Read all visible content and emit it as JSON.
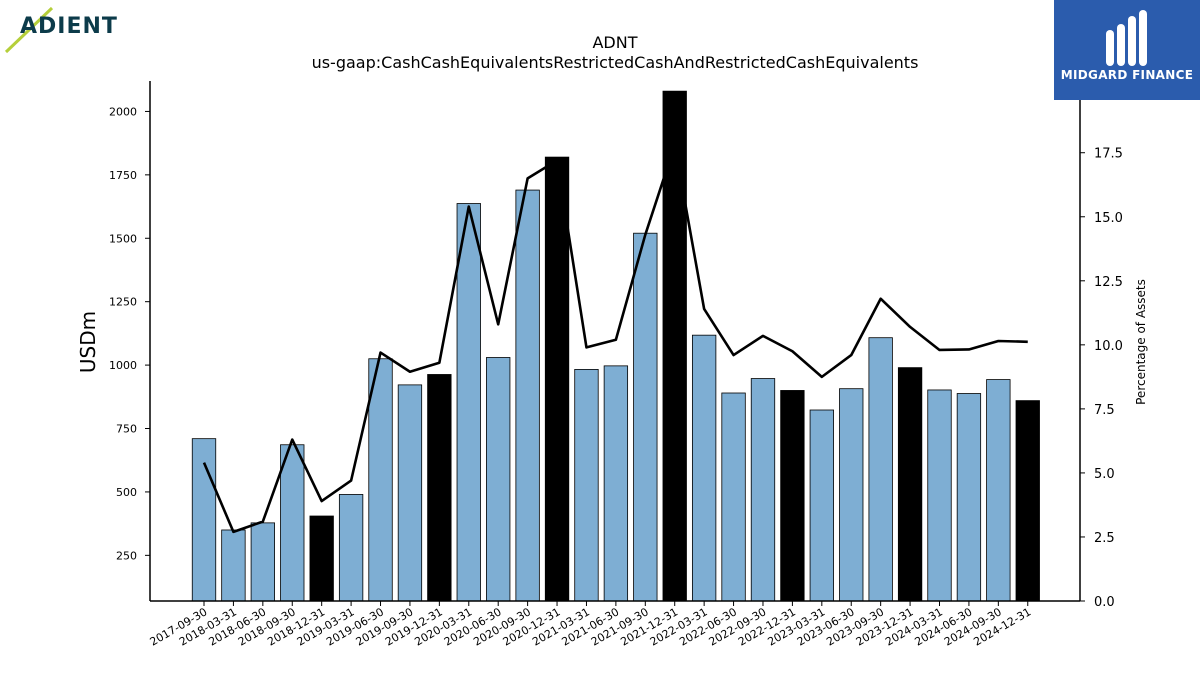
{
  "logos": {
    "left_text": "ADIENT",
    "right_text": "MIDGARD FINANCE"
  },
  "colors": {
    "bar_default": "#7eaed3",
    "bar_highlight": "#000000",
    "line": "#000000",
    "logo_right_bg": "#2b5cad",
    "logo_left_text": "#0c3b4a",
    "logo_left_accent": "#b5cf3a"
  },
  "chart_data": {
    "type": "bar",
    "title": "ADNT",
    "subtitle": "us-gaap:CashCashEquivalentsRestrictedCashAndRestrictedCashEquivalents",
    "ylabel": "USDm",
    "y2label": "Percentage of Assets",
    "ylim": [
      70,
      2120
    ],
    "y2lim": [
      0,
      20.3
    ],
    "yticks": [
      250,
      500,
      750,
      1000,
      1250,
      1500,
      1750,
      2000
    ],
    "y2ticks": [
      0.0,
      2.5,
      5.0,
      7.5,
      10.0,
      12.5,
      15.0,
      17.5
    ],
    "categories": [
      "2017-09-30",
      "2018-03-31",
      "2018-06-30",
      "2018-09-30",
      "2018-12-31",
      "2019-03-31",
      "2019-06-30",
      "2019-09-30",
      "2019-12-31",
      "2020-03-31",
      "2020-06-30",
      "2020-09-30",
      "2020-12-31",
      "2021-03-31",
      "2021-06-30",
      "2021-09-30",
      "2021-12-31",
      "2022-03-31",
      "2022-06-30",
      "2022-09-30",
      "2022-12-31",
      "2023-03-31",
      "2023-06-30",
      "2023-09-30",
      "2023-12-31",
      "2024-03-31",
      "2024-06-30",
      "2024-09-30",
      "2024-12-31"
    ],
    "series": [
      {
        "kind": "bar",
        "values": [
          710,
          350,
          378,
          686,
          405,
          490,
          1025,
          922,
          963,
          1637,
          1030,
          1690,
          1820,
          983,
          997,
          1520,
          2080,
          1118,
          890,
          947,
          900,
          823,
          907,
          1108,
          990,
          902,
          888,
          943,
          860
        ],
        "highlight": [
          false,
          false,
          false,
          false,
          true,
          false,
          false,
          false,
          true,
          false,
          false,
          false,
          true,
          false,
          false,
          false,
          true,
          false,
          false,
          false,
          true,
          false,
          false,
          false,
          true,
          false,
          false,
          false,
          true
        ]
      },
      {
        "kind": "line",
        "axis": "right",
        "values": [
          5.4,
          2.7,
          3.1,
          6.3,
          3.9,
          4.7,
          9.7,
          8.95,
          9.3,
          15.4,
          10.8,
          16.5,
          17.2,
          9.9,
          10.2,
          14.3,
          17.8,
          11.4,
          9.6,
          10.35,
          9.75,
          8.75,
          9.6,
          11.8,
          10.7,
          9.8,
          9.82,
          10.15,
          10.12
        ]
      }
    ],
    "grid": false
  }
}
